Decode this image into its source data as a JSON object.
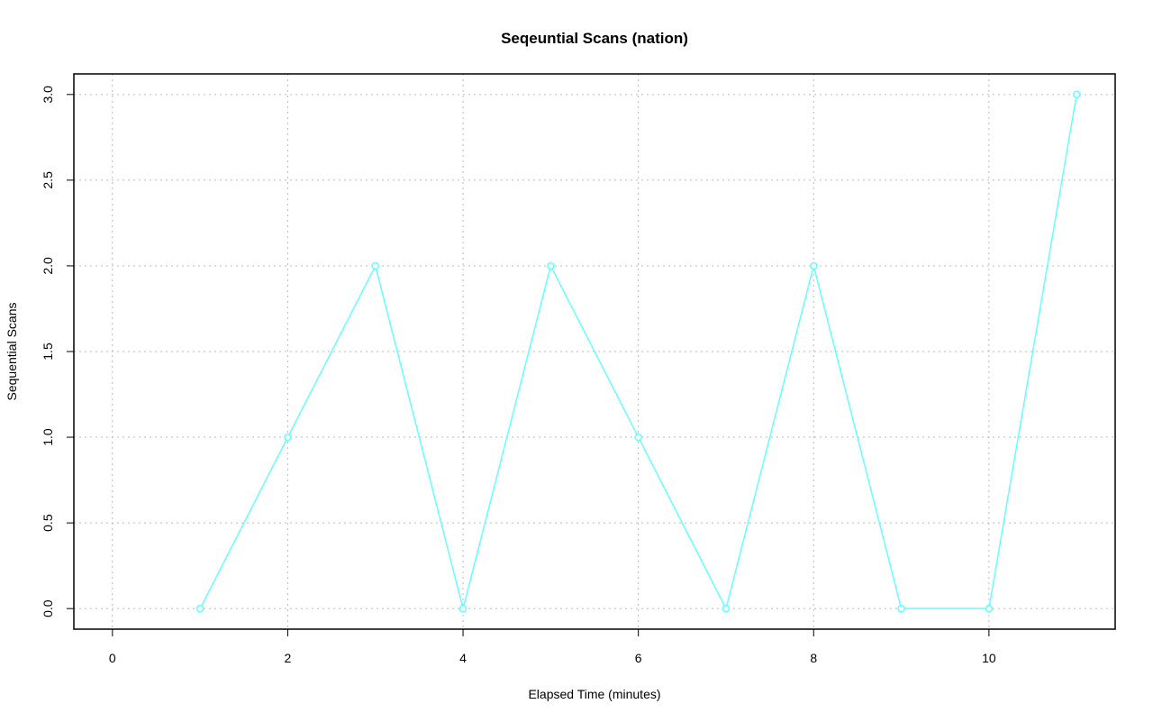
{
  "chart_data": {
    "type": "line",
    "title": "Seqeuntial Scans (nation)",
    "x_label": "Elapsed Time (minutes)",
    "y_label": "Sequential Scans",
    "x": [
      1,
      2,
      3,
      4,
      5,
      6,
      7,
      8,
      9,
      10,
      11
    ],
    "series": [
      {
        "color": "#66ffff",
        "values": [
          0,
          1,
          2,
          0,
          2,
          1,
          0,
          2,
          0,
          0,
          3
        ]
      }
    ],
    "xlim": [
      -0.44,
      11.44
    ],
    "xticks": [
      0,
      2,
      4,
      6,
      8,
      10
    ],
    "ylim": [
      -0.12,
      3.12
    ],
    "yticks": [
      {
        "value": 0,
        "label": "0.0"
      },
      0.5,
      {
        "value": 1,
        "label": "1.0"
      },
      1.5,
      {
        "value": 2,
        "label": "2.0"
      },
      2.5,
      {
        "value": 3,
        "label": "3.0"
      }
    ],
    "grid": true
  }
}
